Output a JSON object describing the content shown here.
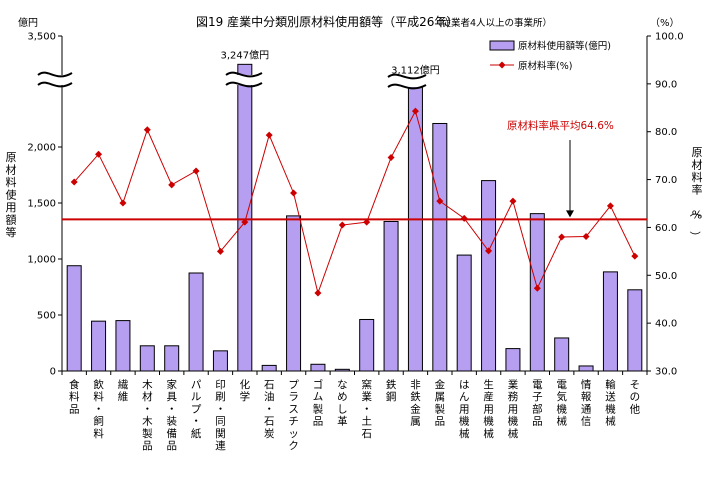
{
  "chart_data": {
    "type": "bar",
    "title": "図19 産業中分類別原材料使用額等（平成26年）",
    "subtitle": "（従業者4人以上の事業所）",
    "y_unit_left": "億円",
    "y_unit_right": "（%）",
    "ylabel": "原材料使用額等",
    "ylabel_right": "原材料率（%）",
    "ylim": [
      0,
      3500
    ],
    "y2lim": [
      30.0,
      100.0
    ],
    "yticks": [
      "0",
      "500",
      "1,000",
      "1,500",
      "2,000",
      "3,500"
    ],
    "y2ticks": [
      "30.0",
      "40.0",
      "50.0",
      "60.0",
      "70.0",
      "80.0",
      "90.0",
      "100.0"
    ],
    "grid": false,
    "legend_position": "top-right",
    "categories": [
      "食料品",
      "飲料・飼料",
      "繊維",
      "木材・木製品",
      "家具・装備品",
      "パルプ・紙",
      "印刷・同関連",
      "化学",
      "石油・石炭",
      "プラスチック",
      "ゴム製品",
      "なめし革",
      "窯業・土石",
      "鉄鋼",
      "非鉄金属",
      "金属製品",
      "はん用機械",
      "生産用機械",
      "業務用機械",
      "電子部品",
      "電気機械",
      "情報通信",
      "輸送機械",
      "その他"
    ],
    "series": [
      {
        "name": "原材料使用額等(億円)",
        "type": "bar",
        "axis": "left",
        "color": "#b69ef0",
        "values": [
          940,
          445,
          450,
          225,
          225,
          875,
          180,
          3247,
          50,
          1385,
          60,
          15,
          460,
          1335,
          3112,
          2210,
          1035,
          1700,
          200,
          1405,
          295,
          45,
          885,
          725
        ]
      },
      {
        "name": "原材料率(%)",
        "type": "line",
        "axis": "right",
        "color": "#cc0000",
        "values": [
          69.5,
          75.3,
          65.1,
          80.4,
          68.9,
          71.8,
          55.0,
          61.1,
          79.3,
          67.2,
          46.3,
          60.5,
          61.1,
          74.6,
          84.3,
          65.5,
          61.9,
          55.1,
          65.5,
          47.3,
          58.0,
          58.1,
          64.5,
          54.0
        ]
      }
    ],
    "reference_line": {
      "label": "原材料率県平均64.6%",
      "value": 64.6,
      "axis": "right",
      "color": "#cc0000"
    },
    "annotations": [
      "3,247億円",
      "3,112億円"
    ],
    "axis_break": {
      "from": 2500,
      "to": 3000
    }
  }
}
